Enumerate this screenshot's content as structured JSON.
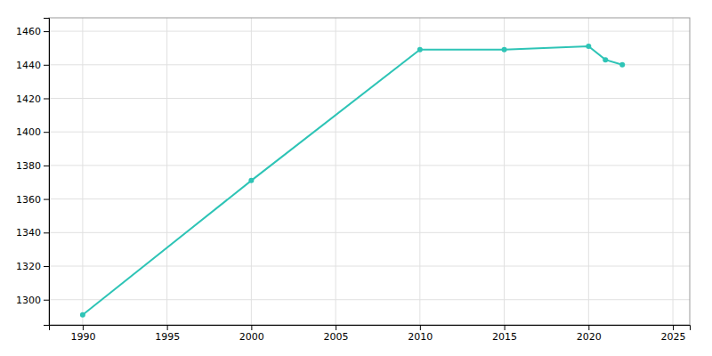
{
  "chart_data": {
    "type": "line",
    "x": [
      1990,
      2000,
      2010,
      2015,
      2020,
      2021,
      2022
    ],
    "values": [
      1291,
      1371,
      1449,
      1449,
      1451,
      1443,
      1440
    ],
    "color": "#2ec4b6",
    "marker": "circle",
    "xlim": [
      1988,
      2026
    ],
    "ylim": [
      1285,
      1468
    ],
    "xticks": [
      1990,
      1995,
      2000,
      2005,
      2010,
      2015,
      2020,
      2025
    ],
    "yticks": [
      1300,
      1320,
      1340,
      1360,
      1380,
      1400,
      1420,
      1440,
      1460
    ],
    "grid": true
  }
}
